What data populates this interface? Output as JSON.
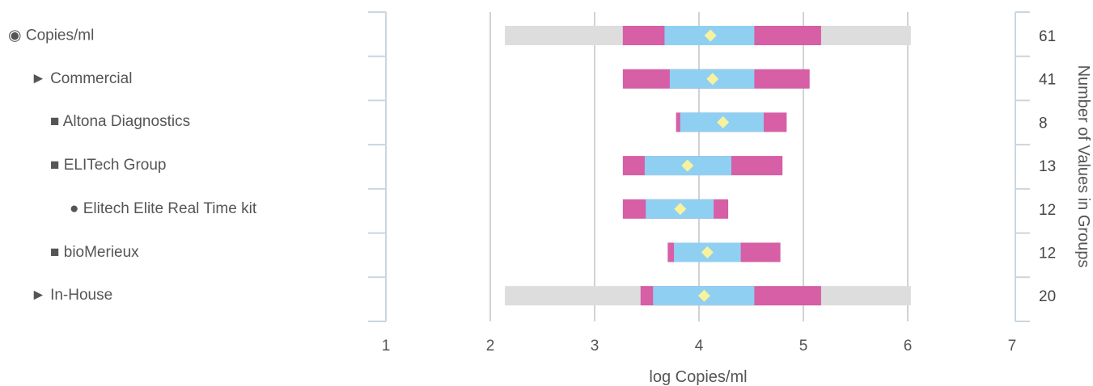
{
  "chart_data": {
    "type": "bar",
    "xlabel": "log Copies/ml",
    "y2label": "Number of Values in Groups",
    "xlim": [
      1,
      7
    ],
    "xticks": [
      1,
      2,
      3,
      4,
      5,
      6,
      7
    ],
    "grid": "vertical",
    "colors": {
      "range": "#dddddd",
      "outer": "#d65fa6",
      "inner": "#8fd0f2",
      "marker": "#f9f29c",
      "grid": "#cfd3d6",
      "axis": "#c9d6e0"
    },
    "rows": [
      {
        "label": "◉ Copies/ml",
        "indent": 0,
        "count": "61",
        "range": [
          2.14,
          6.03
        ],
        "outer": [
          3.27,
          5.17
        ],
        "inner": [
          3.67,
          4.53
        ],
        "marker": 4.11
      },
      {
        "label": "► Commercial",
        "indent": 1,
        "count": "41",
        "range": null,
        "outer": [
          3.27,
          5.06
        ],
        "inner": [
          3.72,
          4.53
        ],
        "marker": 4.13
      },
      {
        "label": "■ Altona Diagnostics",
        "indent": 2,
        "count": "8",
        "range": null,
        "outer": [
          3.78,
          4.84
        ],
        "inner": [
          3.82,
          4.62
        ],
        "marker": 4.23
      },
      {
        "label": "■ ELITech Group",
        "indent": 2,
        "count": "13",
        "range": null,
        "outer": [
          3.27,
          4.8
        ],
        "inner": [
          3.48,
          4.31
        ],
        "marker": 3.89
      },
      {
        "label": "● Elitech Elite Real Time kit",
        "indent": 3,
        "count": "12",
        "range": null,
        "outer": [
          3.27,
          4.28
        ],
        "inner": [
          3.49,
          4.14
        ],
        "marker": 3.82
      },
      {
        "label": "■ bioMerieux",
        "indent": 2,
        "count": "12",
        "range": null,
        "outer": [
          3.7,
          4.78
        ],
        "inner": [
          3.76,
          4.4
        ],
        "marker": 4.08
      },
      {
        "label": "► In-House",
        "indent": 1,
        "count": "20",
        "range": [
          2.14,
          6.03
        ],
        "outer": [
          3.44,
          5.17
        ],
        "inner": [
          3.56,
          4.53
        ],
        "marker": 4.05
      }
    ]
  }
}
